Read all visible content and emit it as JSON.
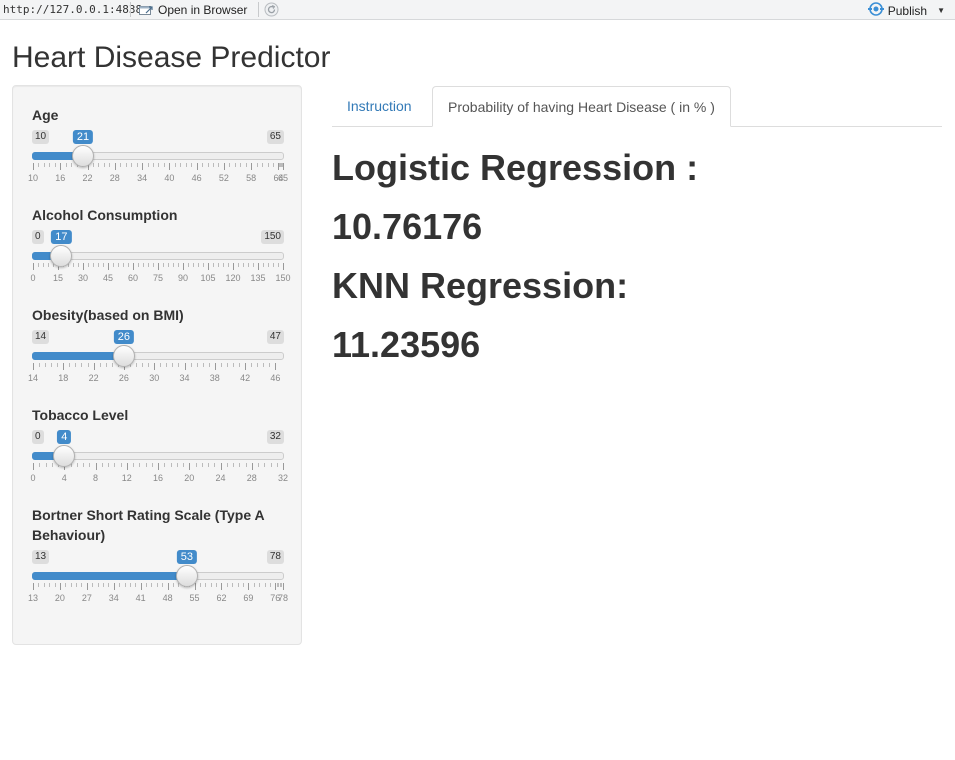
{
  "topbar": {
    "url": "http://127.0.0.1:4838",
    "open_in_browser": "Open in Browser",
    "publish": "Publish"
  },
  "app": {
    "title": "Heart Disease Predictor"
  },
  "sliders": [
    {
      "label": "Age",
      "min": 10,
      "max": 65,
      "value": 21,
      "min_label": "10",
      "max_label": "65",
      "value_label": "21",
      "tick_labels": [
        "10",
        "16",
        "22",
        "28",
        "34",
        "40",
        "46",
        "52",
        "58",
        "64",
        "65"
      ]
    },
    {
      "label": "Alcohol Consumption",
      "min": 0,
      "max": 150,
      "value": 17,
      "min_label": "0",
      "max_label": "150",
      "value_label": "17",
      "tick_labels": [
        "0",
        "15",
        "30",
        "45",
        "60",
        "75",
        "90",
        "105",
        "120",
        "135",
        "150"
      ]
    },
    {
      "label": "Obesity(based on BMI)",
      "min": 14,
      "max": 47,
      "value": 26,
      "min_label": "14",
      "max_label": "47",
      "value_label": "26",
      "tick_labels": [
        "14",
        "18",
        "22",
        "26",
        "30",
        "34",
        "38",
        "42",
        "46"
      ]
    },
    {
      "label": "Tobacco Level",
      "min": 0,
      "max": 32,
      "value": 4,
      "min_label": "0",
      "max_label": "32",
      "value_label": "4",
      "tick_labels": [
        "0",
        "4",
        "8",
        "12",
        "16",
        "20",
        "24",
        "28",
        "32"
      ]
    },
    {
      "label": "Bortner Short Rating Scale (Type A Behaviour)",
      "min": 13,
      "max": 78,
      "value": 53,
      "min_label": "13",
      "max_label": "78",
      "value_label": "53",
      "tick_labels": [
        "13",
        "20",
        "27",
        "34",
        "41",
        "48",
        "55",
        "62",
        "69",
        "76",
        "78"
      ]
    }
  ],
  "tabs": {
    "instruction": "Instruction",
    "probability": "Probability of having Heart Disease ( in % )"
  },
  "results": {
    "logistic_label": "Logistic Regression :",
    "logistic_value": "10.76176",
    "knn_label": "KNN Regression:",
    "knn_value": "11.23596"
  }
}
